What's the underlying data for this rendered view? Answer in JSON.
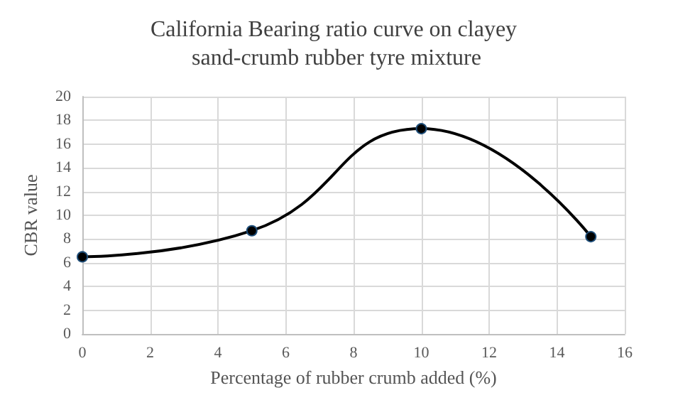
{
  "chart_data": {
    "type": "line",
    "title": "California Bearing ratio curve on clayey sand-crumb rubber tyre mixture",
    "xlabel": "Percentage of rubber crumb added (%)",
    "ylabel": "CBR value",
    "x": [
      0,
      5,
      10,
      15
    ],
    "series": [
      {
        "color": "#000000",
        "values": [
          6.5,
          8.7,
          17.3,
          8.2
        ]
      }
    ],
    "xlim": [
      0,
      16
    ],
    "xticks": [
      0,
      2,
      4,
      6,
      8,
      10,
      12,
      14,
      16
    ],
    "ylim": [
      0,
      20
    ],
    "yticks": [
      0,
      2,
      4,
      6,
      8,
      10,
      12,
      14,
      16,
      18,
      20
    ],
    "grid": true,
    "marker": "circle",
    "line_style": "solid"
  }
}
